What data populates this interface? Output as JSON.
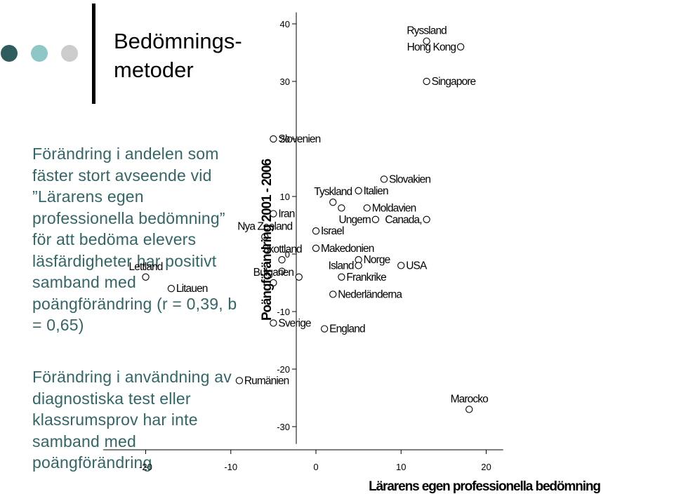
{
  "slide": {
    "title": "Bedömnings-\nmetoder",
    "text_blocks": [
      "Förändring i andelen som fäster stort avseende vid ”Lärarens egen professionella bedömning” för att bedöma elevers läsfärdigheter har positivt samband med poängförändring (r = 0,39, b = 0,65)",
      "Förändring i användning av diagnostiska test eller klassrumsprov har inte samband med poängförändring"
    ],
    "colors": {
      "text": "#336666",
      "dot1": "#2f5d5d",
      "dot2": "#8fc6c8",
      "dot3": "#cccccc",
      "bar": "#000000"
    }
  },
  "chart_data": {
    "type": "scatter",
    "xlabel": "Lärarens egen professionella bedömning",
    "ylabel": "Poängförändring 2001 - 2006",
    "xlim": [
      -25,
      22
    ],
    "ylim": [
      -33,
      42
    ],
    "x_ticks": [
      -20,
      -10,
      0,
      10,
      20
    ],
    "y_ticks": [
      40,
      30,
      20,
      10,
      0,
      -10,
      -20,
      -30
    ],
    "grid": false,
    "points": [
      {
        "label": "Ryssland",
        "x": 13,
        "y": 37,
        "label_pos": "above"
      },
      {
        "label": "Hong Kong",
        "x": 17,
        "y": 36,
        "label_pos": "left"
      },
      {
        "label": "Singapore",
        "x": 13,
        "y": 30,
        "label_pos": "right"
      },
      {
        "label": "Slovenien",
        "x": -5,
        "y": 20,
        "label_pos": "right"
      },
      {
        "label": "Slovakien",
        "x": 8,
        "y": 13,
        "label_pos": "right"
      },
      {
        "label": "Tyskland",
        "x": 2,
        "y": 9,
        "label_pos": "above"
      },
      {
        "label": "Italien",
        "x": 5,
        "y": 11,
        "label_pos": "right"
      },
      {
        "label": "",
        "x": 3,
        "y": 8,
        "label_pos": "none"
      },
      {
        "label": "Moldavien",
        "x": 6,
        "y": 8,
        "label_pos": "right"
      },
      {
        "label": "Iran",
        "x": -5,
        "y": 7,
        "label_pos": "right"
      },
      {
        "label": "Ungern",
        "x": 7,
        "y": 6,
        "label_pos": "left"
      },
      {
        "label": "Canada,",
        "x": 13,
        "y": 6,
        "label_pos": "left"
      },
      {
        "label": "Israel",
        "x": 0,
        "y": 4,
        "label_pos": "right"
      },
      {
        "label": "Nya Zeeland",
        "x": -6,
        "y": 3,
        "label_pos": "above"
      },
      {
        "label": "Makedonien",
        "x": 0,
        "y": 1,
        "label_pos": "right"
      },
      {
        "label": "Skottland",
        "x": -4,
        "y": -1,
        "label_pos": "above"
      },
      {
        "label": "Norge",
        "x": 5,
        "y": -1,
        "label_pos": "right"
      },
      {
        "label": "Island",
        "x": 5,
        "y": -2,
        "label_pos": "left"
      },
      {
        "label": "USA",
        "x": 10,
        "y": -2,
        "label_pos": "right"
      },
      {
        "label": "",
        "x": -4,
        "y": -3,
        "label_pos": "none"
      },
      {
        "label": "Lettland",
        "x": -20,
        "y": -4,
        "label_pos": "above"
      },
      {
        "label": "",
        "x": -2,
        "y": -4,
        "label_pos": "none"
      },
      {
        "label": "Frankrike",
        "x": 3,
        "y": -4,
        "label_pos": "right"
      },
      {
        "label": "Bulgarien",
        "x": -5,
        "y": -5,
        "label_pos": "above"
      },
      {
        "label": "Litauen",
        "x": -17,
        "y": -6,
        "label_pos": "right"
      },
      {
        "label": "Nederländerna",
        "x": 2,
        "y": -7,
        "label_pos": "right"
      },
      {
        "label": "Sverige",
        "x": -5,
        "y": -12,
        "label_pos": "right"
      },
      {
        "label": "England",
        "x": 1,
        "y": -13,
        "label_pos": "right"
      },
      {
        "label": "Rumänien",
        "x": -9,
        "y": -22,
        "label_pos": "right"
      },
      {
        "label": "Marocko",
        "x": 18,
        "y": -27,
        "label_pos": "above"
      }
    ]
  }
}
